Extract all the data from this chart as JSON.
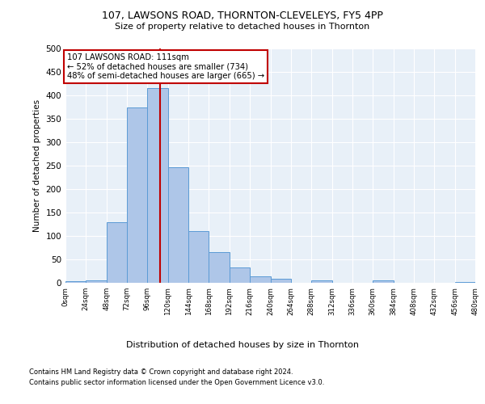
{
  "title1": "107, LAWSONS ROAD, THORNTON-CLEVELEYS, FY5 4PP",
  "title2": "Size of property relative to detached houses in Thornton",
  "xlabel": "Distribution of detached houses by size in Thornton",
  "ylabel": "Number of detached properties",
  "footnote1": "Contains HM Land Registry data © Crown copyright and database right 2024.",
  "footnote2": "Contains public sector information licensed under the Open Government Licence v3.0.",
  "annotation_line1": "107 LAWSONS ROAD: 111sqm",
  "annotation_line2": "← 52% of detached houses are smaller (734)",
  "annotation_line3": "48% of semi-detached houses are larger (665) →",
  "bar_edges": [
    0,
    24,
    48,
    72,
    96,
    120,
    144,
    168,
    192,
    216,
    240,
    264,
    288,
    312,
    336,
    360,
    384,
    408,
    432,
    456,
    480
  ],
  "bar_heights": [
    3,
    5,
    130,
    375,
    415,
    247,
    110,
    65,
    33,
    13,
    8,
    0,
    5,
    0,
    0,
    6,
    0,
    0,
    0,
    2
  ],
  "bar_color": "#aec6e8",
  "bar_edge_color": "#5b9bd5",
  "vline_x": 111,
  "vline_color": "#c00000",
  "annotation_box_color": "#c00000",
  "bg_color": "#e8f0f8",
  "ylim": [
    0,
    500
  ],
  "xlim": [
    0,
    480
  ]
}
